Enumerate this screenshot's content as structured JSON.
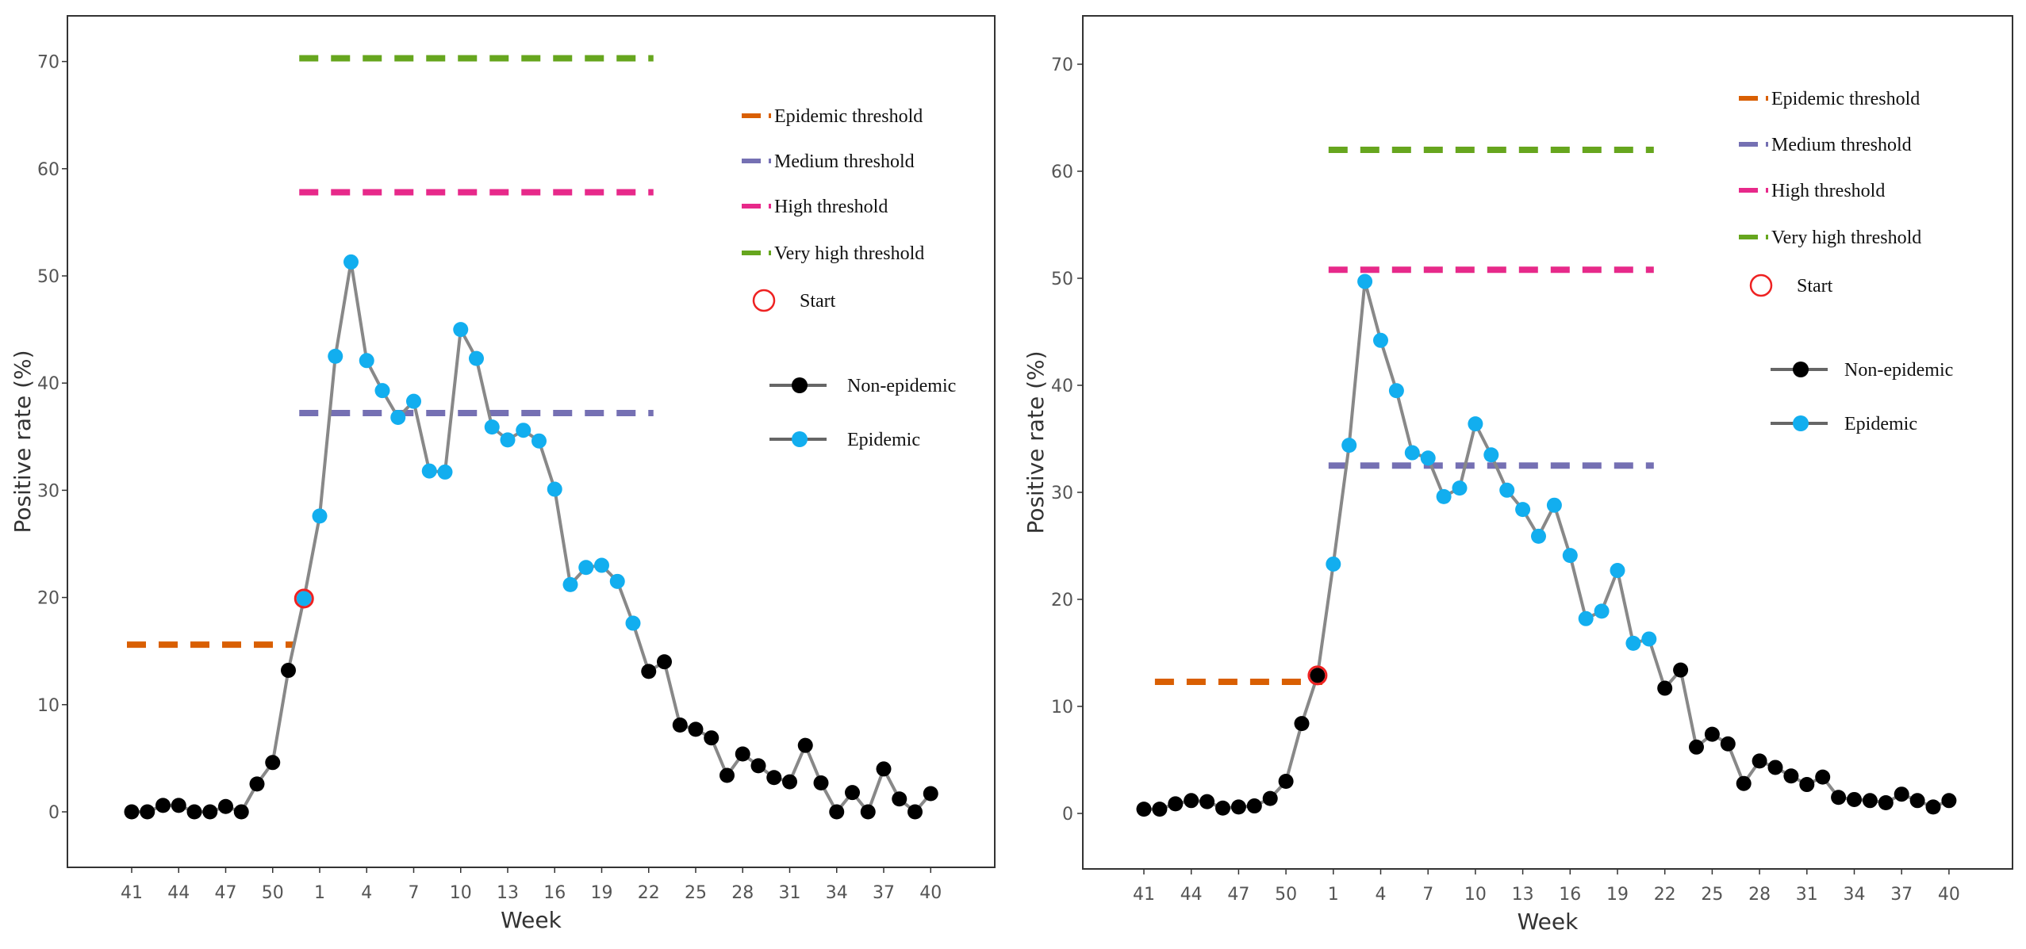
{
  "colors": {
    "epidemic_threshold": "#D95F02",
    "medium_threshold": "#7570B3",
    "high_threshold": "#E7298A",
    "very_high_threshold": "#66A61E",
    "start_marker": "#EE2222",
    "non_epidemic_point": "#000000",
    "epidemic_point": "#12AEEF",
    "line": "#888888",
    "frame": "#333333"
  },
  "chart_data": [
    {
      "type": "line",
      "xlabel": "Week",
      "ylabel": "Positive rate (%)",
      "ylim": [
        -5,
        74
      ],
      "yticks": [
        0,
        10,
        20,
        30,
        40,
        50,
        60,
        70
      ],
      "x_tick_labels": [
        "41",
        "44",
        "47",
        "50",
        "1",
        "4",
        "7",
        "10",
        "13",
        "16",
        "19",
        "22",
        "25",
        "28",
        "31",
        "34",
        "37",
        "40"
      ],
      "weeks": [
        "41",
        "42",
        "43",
        "44",
        "45",
        "46",
        "47",
        "48",
        "49",
        "50",
        "51",
        "52",
        "1",
        "2",
        "3",
        "4",
        "5",
        "6",
        "7",
        "8",
        "9",
        "10",
        "11",
        "12",
        "13",
        "14",
        "15",
        "16",
        "17",
        "18",
        "19",
        "20",
        "21",
        "22",
        "23",
        "24",
        "25",
        "26",
        "27",
        "28",
        "29",
        "30",
        "31",
        "32",
        "33",
        "34",
        "35",
        "36",
        "37",
        "38",
        "39",
        "40"
      ],
      "values": [
        0,
        0,
        0.6,
        0.6,
        0,
        0,
        0.5,
        0,
        2.6,
        4.6,
        13.2,
        19.9,
        27.6,
        42.5,
        51.3,
        42.1,
        39.3,
        36.8,
        38.3,
        31.8,
        31.7,
        45,
        42.3,
        35.9,
        34.7,
        35.6,
        34.6,
        30.1,
        21.2,
        22.8,
        23,
        21.5,
        17.6,
        13.1,
        14,
        8.1,
        7.7,
        6.9,
        3.4,
        5.4,
        4.3,
        3.2,
        2.8,
        6.2,
        2.7,
        0,
        1.8,
        0,
        4,
        1.2,
        0,
        1.7
      ],
      "epidemic_start_index": 11,
      "epidemic_end_index": 32,
      "start_index": 11,
      "thresholds": [
        {
          "name": "Epidemic threshold",
          "value": 15.6,
          "from_index": 0,
          "to_index": 10
        },
        {
          "name": "Medium threshold",
          "value": 37.2,
          "from_index": 11,
          "to_index": 33
        },
        {
          "name": "High threshold",
          "value": 57.8,
          "from_index": 11,
          "to_index": 33
        },
        {
          "name": "Very high threshold",
          "value": 70.3,
          "from_index": 11,
          "to_index": 33
        }
      ],
      "legend": {
        "thresholds": [
          "Epidemic threshold",
          "Medium threshold",
          "High threshold",
          "Very high threshold"
        ],
        "start": "Start",
        "points": [
          "Non-epidemic",
          "Epidemic"
        ]
      }
    },
    {
      "type": "line",
      "xlabel": "Week",
      "ylabel": "Positive rate (%)",
      "ylim": [
        -5,
        74
      ],
      "yticks": [
        0,
        10,
        20,
        30,
        40,
        50,
        60,
        70
      ],
      "x_tick_labels": [
        "41",
        "44",
        "47",
        "50",
        "1",
        "4",
        "7",
        "10",
        "13",
        "16",
        "19",
        "22",
        "25",
        "28",
        "31",
        "34",
        "37",
        "40"
      ],
      "weeks": [
        "41",
        "42",
        "43",
        "44",
        "45",
        "46",
        "47",
        "48",
        "49",
        "50",
        "51",
        "52",
        "1",
        "2",
        "3",
        "4",
        "5",
        "6",
        "7",
        "8",
        "9",
        "10",
        "11",
        "12",
        "13",
        "14",
        "15",
        "16",
        "17",
        "18",
        "19",
        "20",
        "21",
        "22",
        "23",
        "24",
        "25",
        "26",
        "27",
        "28",
        "29",
        "30",
        "31",
        "32",
        "33",
        "34",
        "35",
        "36",
        "37",
        "38",
        "39",
        "40"
      ],
      "values": [
        0.4,
        0.4,
        0.9,
        1.2,
        1.1,
        0.5,
        0.6,
        0.7,
        1.4,
        3,
        8.4,
        12.9,
        23.3,
        34.4,
        49.7,
        44.2,
        39.5,
        33.7,
        33.2,
        29.6,
        30.4,
        36.4,
        33.5,
        30.2,
        28.4,
        25.9,
        28.8,
        24.1,
        18.2,
        18.9,
        22.7,
        15.9,
        16.3,
        11.7,
        13.4,
        6.2,
        7.4,
        6.5,
        2.8,
        4.9,
        4.3,
        3.5,
        2.7,
        3.4,
        1.5,
        1.3,
        1.2,
        1,
        1.8,
        1.2,
        0.6,
        1.2
      ],
      "epidemic_start_index": 12,
      "epidemic_end_index": 32,
      "start_index": 11,
      "thresholds": [
        {
          "name": "Epidemic threshold",
          "value": 12.3,
          "from_index": 1,
          "to_index": 11
        },
        {
          "name": "Medium threshold",
          "value": 32.5,
          "from_index": 12,
          "to_index": 32
        },
        {
          "name": "High threshold",
          "value": 50.8,
          "from_index": 12,
          "to_index": 32
        },
        {
          "name": "Very high threshold",
          "value": 62,
          "from_index": 12,
          "to_index": 32
        }
      ],
      "legend": {
        "thresholds": [
          "Epidemic threshold",
          "Medium threshold",
          "High threshold",
          "Very high threshold"
        ],
        "start": "Start",
        "points": [
          "Non-epidemic",
          "Epidemic"
        ]
      }
    }
  ]
}
